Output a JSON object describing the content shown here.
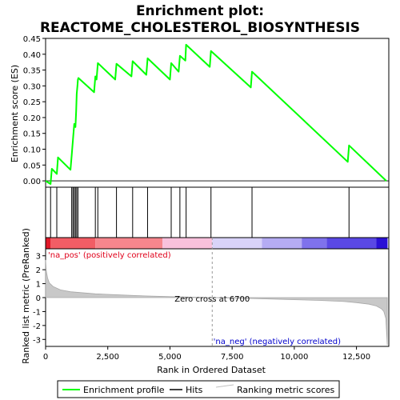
{
  "title_line1": "Enrichment plot:",
  "title_line2": "REACTOME_CHOLESTEROL_BIOSYNTHESIS",
  "chart_data": {
    "type": "line",
    "top_panel": {
      "ylabel": "Enrichment score (ES)",
      "ylim": [
        -0.02,
        0.45
      ],
      "yticks": [
        "0.00",
        "0.05",
        "0.10",
        "0.15",
        "0.20",
        "0.25",
        "0.30",
        "0.35",
        "0.40",
        "0.45"
      ],
      "ytick_values": [
        0.0,
        0.05,
        0.1,
        0.15,
        0.2,
        0.25,
        0.3,
        0.35,
        0.4,
        0.45
      ],
      "line_color": "#00ff00",
      "series": [
        {
          "name": "Enrichment profile",
          "x": [
            0,
            200,
            250,
            450,
            500,
            1000,
            1050,
            1100,
            1150,
            1200,
            1230,
            1250,
            1280,
            1300,
            1320,
            1950,
            2000,
            2050,
            2100,
            2800,
            2850,
            3450,
            3500,
            4050,
            4100,
            5000,
            5050,
            5350,
            5400,
            5620,
            5650,
            6600,
            6650,
            8250,
            8300,
            12150,
            12200,
            13700
          ],
          "y": [
            0.0,
            -0.01,
            0.038,
            0.022,
            0.074,
            0.035,
            0.08,
            0.13,
            0.18,
            0.17,
            0.22,
            0.275,
            0.3,
            0.32,
            0.325,
            0.28,
            0.33,
            0.32,
            0.372,
            0.32,
            0.37,
            0.33,
            0.378,
            0.335,
            0.387,
            0.32,
            0.372,
            0.345,
            0.395,
            0.38,
            0.43,
            0.36,
            0.41,
            0.295,
            0.345,
            0.06,
            0.112,
            0.0
          ]
        }
      ]
    },
    "hits_panel": {
      "hit_positions": [
        200,
        450,
        1050,
        1100,
        1150,
        1200,
        1250,
        1300,
        2000,
        2100,
        2850,
        3500,
        4100,
        5050,
        5400,
        5650,
        6650,
        8300,
        12200
      ]
    },
    "rank_bar": {
      "segments": [
        {
          "x0": 0,
          "x1": 2000,
          "color": "#f25d65"
        },
        {
          "x0": 2000,
          "x1": 4700,
          "color": "#f6868d"
        },
        {
          "x0": 4700,
          "x1": 6700,
          "color": "#f9c1dc"
        },
        {
          "x0": 6700,
          "x1": 8700,
          "color": "#d9d3f9"
        },
        {
          "x0": 8700,
          "x1": 10300,
          "color": "#b5acf3"
        },
        {
          "x0": 10300,
          "x1": 11300,
          "color": "#7f72ec"
        },
        {
          "x0": 11300,
          "x1": 13300,
          "color": "#5a48e4"
        },
        {
          "x0": 13300,
          "x1": 13750,
          "color": "#2a10d6"
        }
      ],
      "left_edge_color": "#e01828"
    },
    "bottom_panel": {
      "ylabel": "Ranked list metric (PreRanked)",
      "xlabel": "Rank in Ordered Dataset",
      "ylim": [
        -3.5,
        3.5
      ],
      "yticks": [
        "-3",
        "-2",
        "-1",
        "0",
        "1",
        "2",
        "3"
      ],
      "ytick_values": [
        -3,
        -2,
        -1,
        0,
        1,
        2,
        3
      ],
      "xlim": [
        0,
        13800
      ],
      "xticks": [
        "0",
        "2,500",
        "5,000",
        "7,500",
        "10,000",
        "12,500"
      ],
      "xtick_values": [
        0,
        2500,
        5000,
        7500,
        10000,
        12500
      ],
      "metric_x": [
        0,
        30,
        80,
        150,
        300,
        600,
        1000,
        2000,
        3000,
        4000,
        5000,
        6000,
        6700,
        8000,
        9000,
        10000,
        11000,
        12000,
        12500,
        13000,
        13300,
        13500,
        13600,
        13680,
        13740
      ],
      "metric_y": [
        2.7,
        1.9,
        1.4,
        1.05,
        0.8,
        0.55,
        0.42,
        0.27,
        0.19,
        0.12,
        0.07,
        0.03,
        0.0,
        -0.05,
        -0.1,
        -0.15,
        -0.2,
        -0.28,
        -0.36,
        -0.47,
        -0.6,
        -0.8,
        -1.0,
        -1.5,
        -3.4
      ],
      "fill_color": "#c8c8c8",
      "zero_cross_label": "Zero cross at 6700",
      "zero_cross_x": 6700,
      "pos_label": "'na_pos' (positively correlated)",
      "neg_label": "'na_neg' (negatively correlated)",
      "pos_color": "#e0001a",
      "neg_color": "#0000cc"
    },
    "legend": [
      {
        "label": "Enrichment profile",
        "color": "#00ff00"
      },
      {
        "label": "Hits",
        "color": "#000000"
      },
      {
        "label": "Ranking metric scores",
        "color": "#c0c0c0"
      }
    ]
  }
}
